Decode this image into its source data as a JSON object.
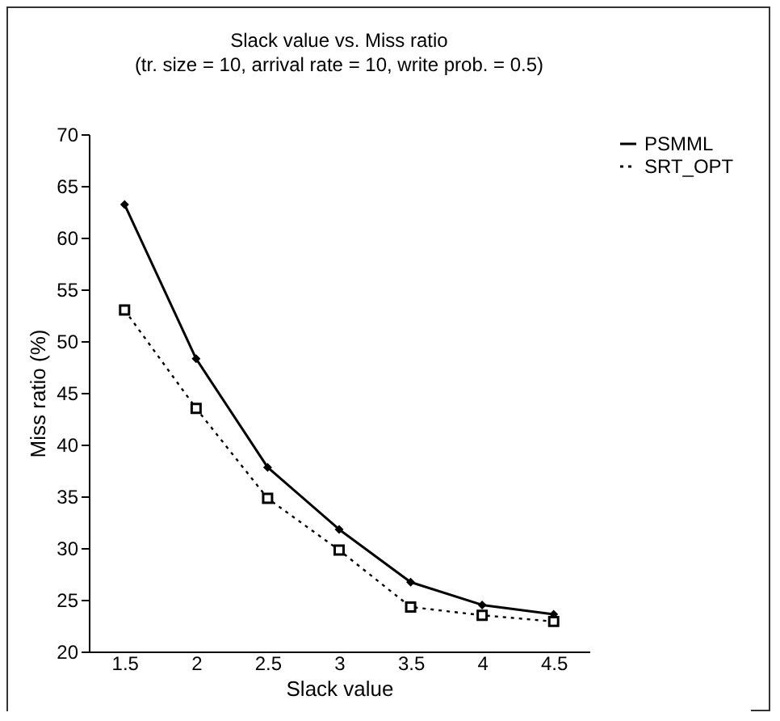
{
  "chart_data": {
    "type": "line",
    "title": "Slack value vs. Miss ratio",
    "subtitle": "(tr. size = 10, arrival rate = 10, write prob. = 0.5)",
    "xlabel": "Slack value",
    "ylabel": "Miss ratio (%)",
    "categories": [
      "1.5",
      "2",
      "2.5",
      "3",
      "3.5",
      "4",
      "4.5"
    ],
    "series": [
      {
        "name": "PSMML",
        "color": "#000000",
        "marker": "diamond",
        "line_style": "solid",
        "values": [
          63.2,
          48.3,
          37.8,
          31.8,
          26.7,
          24.5,
          23.6
        ]
      },
      {
        "name": "SRT_OPT",
        "color": "#000000",
        "marker": "square",
        "line_style": "dotted",
        "values": [
          53,
          43.5,
          34.8,
          29.8,
          24.3,
          23.5,
          22.9
        ]
      }
    ],
    "ylim": [
      20,
      70
    ],
    "yticks": [
      20,
      25,
      30,
      35,
      40,
      45,
      50,
      55,
      60,
      65,
      70
    ],
    "grid": false,
    "legend": "right"
  }
}
